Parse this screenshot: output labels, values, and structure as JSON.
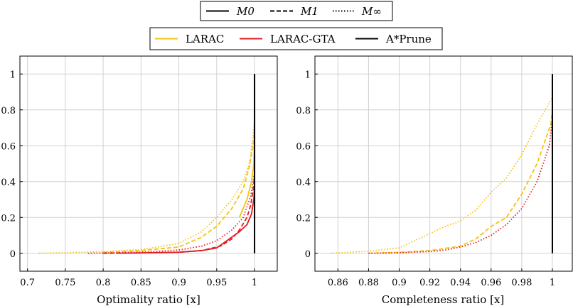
{
  "colors": {
    "LARAC": "#f5c211",
    "LARAC-GTA": "#e01b24",
    "A*Prune": "#000000",
    "grid": "#d0d0d0"
  },
  "legend_styles": {
    "entries": [
      {
        "label": "M0",
        "dash": "solid"
      },
      {
        "label": "M1",
        "dash": "dashed"
      },
      {
        "label": "M∞",
        "dash": "dotted"
      }
    ]
  },
  "legend_algorithms": {
    "entries": [
      {
        "label": "LARAC",
        "color": "#f5c211"
      },
      {
        "label": "LARAC-GTA",
        "color": "#e01b24"
      },
      {
        "label": "A*Prune",
        "color": "#000000"
      }
    ]
  },
  "chart_data": [
    {
      "type": "line",
      "xlabel": "Optimality ratio [x]",
      "ylabel": "",
      "xlim": [
        0.69,
        1.03
      ],
      "ylim": [
        -0.1,
        1.1
      ],
      "xticks": [
        "0.7",
        "0.75",
        "0.8",
        "0.85",
        "0.9",
        "0.95",
        "1"
      ],
      "yticks": [
        "0",
        "0.2",
        "0.4",
        "0.6",
        "0.8",
        "1"
      ],
      "grid": true,
      "series": [
        {
          "algorithm": "LARAC",
          "style": "M∞",
          "dash": "dotted",
          "x": [
            0.715,
            0.75,
            0.8,
            0.85,
            0.9,
            0.93,
            0.95,
            0.97,
            0.985,
            0.993,
            0.998,
            1.0,
            1.0
          ],
          "y": [
            0.0,
            0.003,
            0.01,
            0.02,
            0.055,
            0.12,
            0.2,
            0.3,
            0.4,
            0.5,
            0.65,
            0.75,
            1.0
          ]
        },
        {
          "algorithm": "LARAC",
          "style": "M1",
          "dash": "dashed",
          "x": [
            0.8,
            0.85,
            0.9,
            0.93,
            0.95,
            0.97,
            0.985,
            0.993,
            0.998,
            1.0,
            1.0
          ],
          "y": [
            0.005,
            0.015,
            0.035,
            0.09,
            0.15,
            0.25,
            0.36,
            0.48,
            0.6,
            0.7,
            1.0
          ]
        },
        {
          "algorithm": "LARAC",
          "style": "M0",
          "dash": "solid",
          "x": [
            0.98,
            0.99,
            0.996,
            0.999,
            1.0,
            1.0
          ],
          "y": [
            0.2,
            0.3,
            0.4,
            0.5,
            0.65,
            1.0
          ]
        },
        {
          "algorithm": "LARAC-GTA",
          "style": "M∞",
          "dash": "dotted",
          "x": [
            0.78,
            0.82,
            0.86,
            0.9,
            0.93,
            0.95,
            0.97,
            0.985,
            0.995,
            1.0,
            1.0
          ],
          "y": [
            0.0,
            0.003,
            0.008,
            0.018,
            0.04,
            0.07,
            0.13,
            0.2,
            0.32,
            0.45,
            1.0
          ]
        },
        {
          "algorithm": "LARAC-GTA",
          "style": "M1",
          "dash": "dashed",
          "x": [
            0.8,
            0.85,
            0.9,
            0.93,
            0.955,
            0.97,
            0.98,
            0.99,
            0.995,
            0.999,
            1.0,
            1.0
          ],
          "y": [
            0.0,
            0.002,
            0.006,
            0.015,
            0.04,
            0.08,
            0.13,
            0.2,
            0.27,
            0.38,
            0.45,
            1.0
          ]
        },
        {
          "algorithm": "LARAC-GTA",
          "style": "M0",
          "dash": "solid",
          "x": [
            0.82,
            0.86,
            0.9,
            0.93,
            0.95,
            0.96,
            0.97,
            0.98,
            0.99,
            0.996,
            0.999,
            1.0,
            1.0
          ],
          "y": [
            0.0,
            0.003,
            0.006,
            0.015,
            0.03,
            0.06,
            0.09,
            0.12,
            0.16,
            0.22,
            0.3,
            0.38,
            1.0
          ]
        },
        {
          "algorithm": "A*Prune",
          "style": "M0",
          "dash": "solid",
          "x": [
            1.0,
            1.0
          ],
          "y": [
            0.0,
            1.0
          ]
        }
      ]
    },
    {
      "type": "line",
      "xlabel": "Completeness ratio [x]",
      "ylabel": "",
      "xlim": [
        0.845,
        1.013
      ],
      "ylim": [
        -0.1,
        1.1
      ],
      "xticks": [
        "0.86",
        "0.88",
        "0.9",
        "0.92",
        "0.94",
        "0.96",
        "0.98",
        "1"
      ],
      "yticks": [
        "0",
        "0.2",
        "0.4",
        "0.6",
        "0.8",
        "1"
      ],
      "grid": true,
      "series": [
        {
          "algorithm": "LARAC",
          "style": "M∞",
          "dash": "dotted",
          "x": [
            0.855,
            0.88,
            0.9,
            0.91,
            0.92,
            0.93,
            0.94,
            0.95,
            0.96,
            0.97,
            0.98,
            0.99,
            1.0,
            1.0
          ],
          "y": [
            0.0,
            0.012,
            0.03,
            0.07,
            0.11,
            0.15,
            0.18,
            0.24,
            0.34,
            0.42,
            0.55,
            0.72,
            0.87,
            1.0
          ]
        },
        {
          "algorithm": "LARAC",
          "style": "M1",
          "dash": "dashed",
          "x": [
            0.88,
            0.9,
            0.92,
            0.94,
            0.95,
            0.96,
            0.97,
            0.98,
            0.99,
            0.999,
            1.0,
            1.0
          ],
          "y": [
            0.0,
            0.005,
            0.015,
            0.04,
            0.08,
            0.15,
            0.2,
            0.33,
            0.5,
            0.72,
            0.8,
            1.0
          ]
        },
        {
          "algorithm": "LARAC-GTA",
          "style": "M∞",
          "dash": "dotted",
          "x": [
            0.88,
            0.9,
            0.92,
            0.93,
            0.94,
            0.95,
            0.96,
            0.97,
            0.98,
            0.99,
            0.998,
            1.0,
            1.0
          ],
          "y": [
            0.0,
            0.003,
            0.01,
            0.018,
            0.035,
            0.06,
            0.1,
            0.16,
            0.25,
            0.4,
            0.6,
            0.75,
            1.0
          ]
        },
        {
          "algorithm": "A*Prune",
          "style": "M0",
          "dash": "solid",
          "x": [
            1.0,
            1.0
          ],
          "y": [
            0.0,
            1.0
          ]
        }
      ]
    }
  ]
}
